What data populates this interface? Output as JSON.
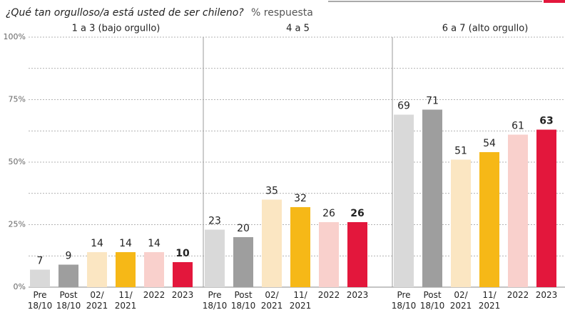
{
  "chart_data": {
    "type": "bar",
    "title": "¿Qué tan orgulloso/a está usted de ser chileno?",
    "subtitle": "% respuesta",
    "categories": [
      "Pre 18/10",
      "Post 18/10",
      "02/ 2021",
      "11/ 2021",
      "2022",
      "2023"
    ],
    "colors": [
      "#d9d9d9",
      "#9e9e9e",
      "#fbe6c2",
      "#f6b817",
      "#f9d0cc",
      "#e3173c"
    ],
    "panels": [
      {
        "title": "1 a 3 (bajo orgullo)",
        "values": [
          7,
          9,
          14,
          14,
          14,
          10
        ]
      },
      {
        "title": "4 a 5",
        "values": [
          23,
          20,
          35,
          32,
          26,
          26
        ]
      },
      {
        "title": "6 a 7 (alto orgullo)",
        "values": [
          69,
          71,
          51,
          54,
          61,
          63
        ]
      }
    ],
    "ylim": [
      0,
      100
    ],
    "yticks": [
      {
        "value": 0,
        "label": "0%"
      },
      {
        "value": 25,
        "label": "25%"
      },
      {
        "value": 50,
        "label": "50%"
      },
      {
        "value": 75,
        "label": "75%"
      },
      {
        "value": 100,
        "label": "100%"
      }
    ],
    "minor_yticks": [
      12.5,
      37.5,
      62.5,
      87.5
    ],
    "grid": true
  }
}
